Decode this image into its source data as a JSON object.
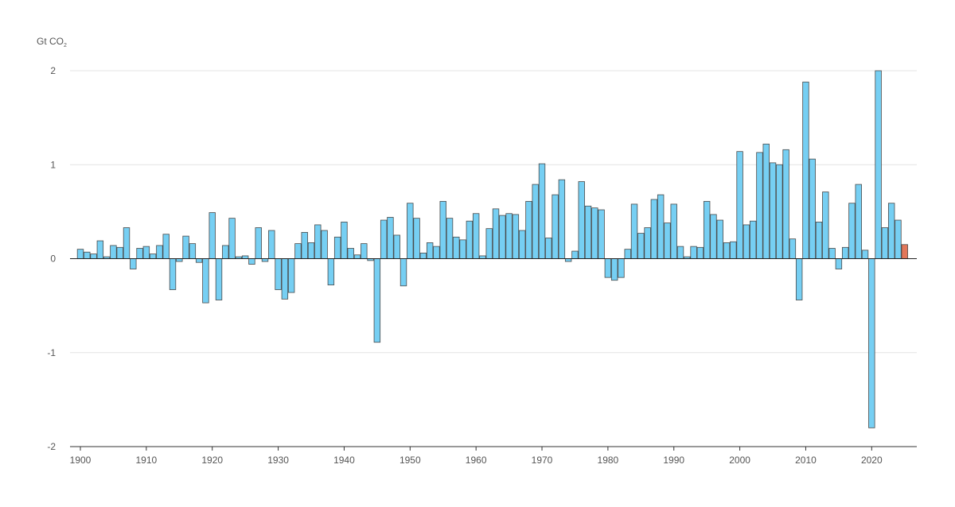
{
  "chart_data": {
    "type": "bar",
    "unit_label": {
      "main": "Gt CO",
      "sub": "2"
    },
    "ylim": [
      -2,
      2
    ],
    "y_ticks": [
      {
        "value": 2,
        "label": "2"
      },
      {
        "value": 1,
        "label": "1"
      },
      {
        "value": 0,
        "label": "0"
      },
      {
        "value": -1,
        "label": "-1"
      },
      {
        "value": -2,
        "label": "-2"
      }
    ],
    "x_ticks": [
      {
        "value": 1900,
        "label": "1900"
      },
      {
        "value": 1910,
        "label": "1910"
      },
      {
        "value": 1920,
        "label": "1920"
      },
      {
        "value": 1930,
        "label": "1930"
      },
      {
        "value": 1940,
        "label": "1940"
      },
      {
        "value": 1950,
        "label": "1950"
      },
      {
        "value": 1960,
        "label": "1960"
      },
      {
        "value": 1970,
        "label": "1970"
      },
      {
        "value": 1980,
        "label": "1980"
      },
      {
        "value": 1990,
        "label": "1990"
      },
      {
        "value": 2000,
        "label": "2000"
      },
      {
        "value": 2010,
        "label": "2010"
      },
      {
        "value": 2020,
        "label": "2020"
      }
    ],
    "grid": true,
    "colors": {
      "bar": "#76cff3",
      "highlight": "#e2775a"
    },
    "highlight_years": [
      2025
    ],
    "years": [
      1900,
      1901,
      1902,
      1903,
      1904,
      1905,
      1906,
      1907,
      1908,
      1909,
      1910,
      1911,
      1912,
      1913,
      1914,
      1915,
      1916,
      1917,
      1918,
      1919,
      1920,
      1921,
      1922,
      1923,
      1924,
      1925,
      1926,
      1927,
      1928,
      1929,
      1930,
      1931,
      1932,
      1933,
      1934,
      1935,
      1936,
      1937,
      1938,
      1939,
      1940,
      1941,
      1942,
      1943,
      1944,
      1945,
      1946,
      1947,
      1948,
      1949,
      1950,
      1951,
      1952,
      1953,
      1954,
      1955,
      1956,
      1957,
      1958,
      1959,
      1960,
      1961,
      1962,
      1963,
      1964,
      1965,
      1966,
      1967,
      1968,
      1969,
      1970,
      1971,
      1972,
      1973,
      1974,
      1975,
      1976,
      1977,
      1978,
      1979,
      1980,
      1981,
      1982,
      1983,
      1984,
      1985,
      1986,
      1987,
      1988,
      1989,
      1990,
      1991,
      1992,
      1993,
      1994,
      1995,
      1996,
      1997,
      1998,
      1999,
      2000,
      2001,
      2002,
      2003,
      2004,
      2005,
      2006,
      2007,
      2008,
      2009,
      2010,
      2011,
      2012,
      2013,
      2014,
      2015,
      2016,
      2017,
      2018,
      2019,
      2020,
      2021,
      2022,
      2023,
      2024,
      2025
    ],
    "values": [
      0.1,
      0.07,
      0.05,
      0.19,
      0.02,
      0.14,
      0.12,
      0.33,
      -0.11,
      0.11,
      0.13,
      0.05,
      0.14,
      0.26,
      -0.33,
      -0.03,
      0.24,
      0.16,
      -0.04,
      -0.47,
      0.49,
      -0.44,
      0.14,
      0.43,
      0.02,
      0.03,
      -0.06,
      0.33,
      -0.03,
      0.3,
      -0.33,
      -0.43,
      -0.36,
      0.16,
      0.28,
      0.17,
      0.36,
      0.3,
      -0.28,
      0.23,
      0.39,
      0.11,
      0.04,
      0.16,
      -0.02,
      -0.89,
      0.41,
      0.44,
      0.25,
      -0.29,
      0.59,
      0.43,
      0.06,
      0.17,
      0.13,
      0.61,
      0.43,
      0.23,
      0.2,
      0.4,
      0.48,
      0.03,
      0.32,
      0.53,
      0.46,
      0.48,
      0.47,
      0.3,
      0.61,
      0.79,
      1.01,
      0.22,
      0.68,
      0.84,
      -0.03,
      0.08,
      0.82,
      0.56,
      0.54,
      0.52,
      -0.2,
      -0.23,
      -0.2,
      0.1,
      0.58,
      0.27,
      0.33,
      0.63,
      0.68,
      0.38,
      0.58,
      0.13,
      0.02,
      0.13,
      0.12,
      0.61,
      0.47,
      0.41,
      0.17,
      0.18,
      1.14,
      0.36,
      0.4,
      1.13,
      1.22,
      1.02,
      1.0,
      1.16,
      0.21,
      -0.44,
      1.88,
      1.06,
      0.39,
      0.71,
      0.11,
      -0.11,
      0.12,
      0.59,
      0.79,
      0.09,
      -1.8,
      2.0,
      0.33,
      0.59,
      0.41,
      0.15
    ]
  }
}
